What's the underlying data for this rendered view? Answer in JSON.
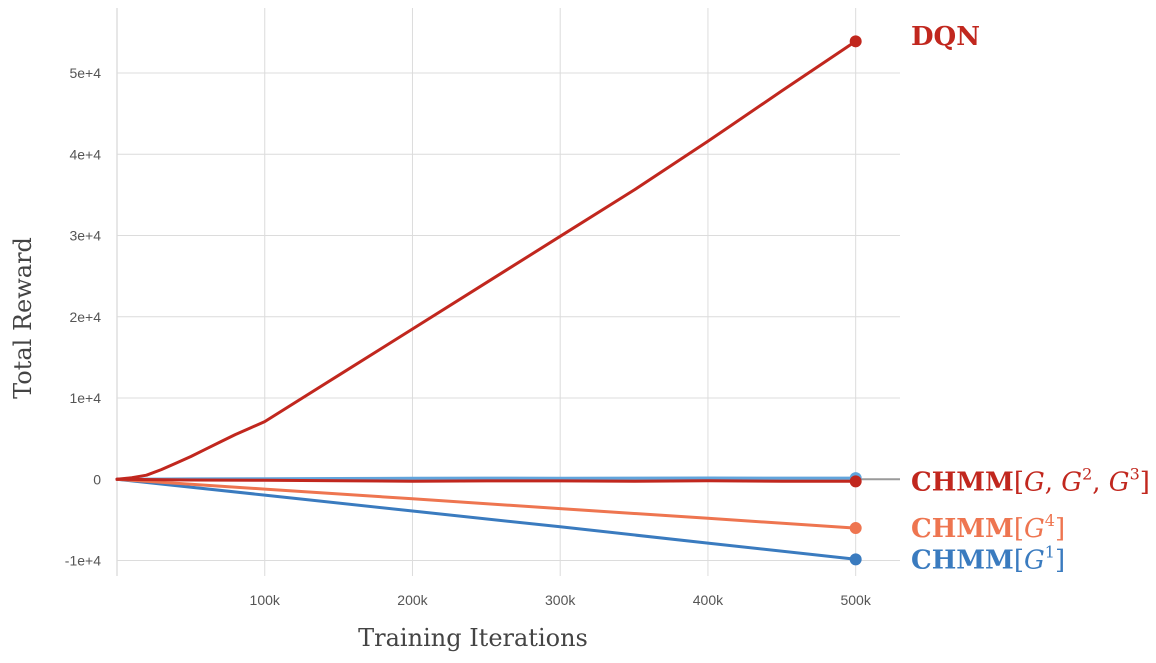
{
  "chart_data": {
    "type": "line",
    "xlabel": "Training Iterations",
    "ylabel": "Total Reward",
    "xlim": [
      0,
      530000
    ],
    "ylim": [
      -11900,
      58000
    ],
    "x_ticks": [
      100000,
      200000,
      300000,
      400000,
      500000
    ],
    "x_tick_labels": [
      "100k",
      "200k",
      "300k",
      "400k",
      "500k"
    ],
    "y_ticks": [
      -10000,
      0,
      10000,
      20000,
      30000,
      40000,
      50000
    ],
    "y_tick_labels": [
      "-1e+4",
      "0",
      "1e+4",
      "2e+4",
      "3e+4",
      "4e+4",
      "5e+4"
    ],
    "grid": true,
    "zero_line": true,
    "legend_placement": "direct labels at right end of each line",
    "series": [
      {
        "name": "DQN",
        "label_parts": [
          {
            "t": "DQN",
            "s": "bold"
          }
        ],
        "color": "#c1271e",
        "x": [
          0,
          10000,
          20000,
          30000,
          40000,
          50000,
          60000,
          70000,
          80000,
          90000,
          100000,
          150000,
          200000,
          250000,
          300000,
          350000,
          400000,
          450000,
          500000
        ],
        "y": [
          0,
          200,
          500,
          1200,
          2000,
          2800,
          3700,
          4600,
          5500,
          6300,
          7100,
          12800,
          18500,
          24200,
          29900,
          35600,
          41600,
          47800,
          53900
        ]
      },
      {
        "name": "CHMM[G, G2, G3]",
        "label_parts": [
          {
            "t": "CHMM",
            "s": "bold"
          },
          {
            "t": "[",
            "s": "normal"
          },
          {
            "t": "G",
            "s": "math"
          },
          {
            "t": ", ",
            "s": "normal"
          },
          {
            "t": "G",
            "s": "math"
          },
          {
            "t": "2",
            "s": "sup"
          },
          {
            "t": ", ",
            "s": "normal"
          },
          {
            "t": "G",
            "s": "math"
          },
          {
            "t": "3",
            "s": "sup"
          },
          {
            "t": "]",
            "s": "normal"
          }
        ],
        "color": "#c1271e",
        "x": [
          0,
          50000,
          100000,
          150000,
          200000,
          250000,
          300000,
          350000,
          400000,
          450000,
          500000
        ],
        "y": [
          0,
          -80,
          -120,
          -180,
          -230,
          -200,
          -200,
          -230,
          -180,
          -230,
          -250
        ]
      },
      {
        "name": "CHMM[G4]",
        "label_parts": [
          {
            "t": "CHMM",
            "s": "bold"
          },
          {
            "t": "[",
            "s": "normal"
          },
          {
            "t": "G",
            "s": "math"
          },
          {
            "t": "4",
            "s": "sup"
          },
          {
            "t": "]",
            "s": "normal"
          }
        ],
        "color": "#ee7550",
        "x": [
          0,
          100000,
          200000,
          300000,
          400000,
          500000
        ],
        "y": [
          0,
          -1200,
          -2400,
          -3600,
          -4800,
          -6000
        ]
      },
      {
        "name": "CHMM[G1]",
        "label_parts": [
          {
            "t": "CHMM",
            "s": "bold"
          },
          {
            "t": "[",
            "s": "normal"
          },
          {
            "t": "G",
            "s": "math"
          },
          {
            "t": "1",
            "s": "sup"
          },
          {
            "t": "]",
            "s": "normal"
          }
        ],
        "color": "#3a7bbf",
        "x": [
          0,
          100000,
          200000,
          300000,
          400000,
          500000
        ],
        "y": [
          0,
          -1950,
          -3900,
          -5850,
          -7850,
          -9850
        ]
      },
      {
        "name": "",
        "label_parts": [],
        "color": "#61a5dd",
        "x": [
          0,
          50000,
          100000,
          150000,
          200000,
          250000,
          300000,
          350000,
          400000,
          450000,
          500000
        ],
        "y": [
          0,
          50,
          80,
          100,
          120,
          150,
          130,
          150,
          160,
          150,
          150
        ]
      }
    ]
  }
}
